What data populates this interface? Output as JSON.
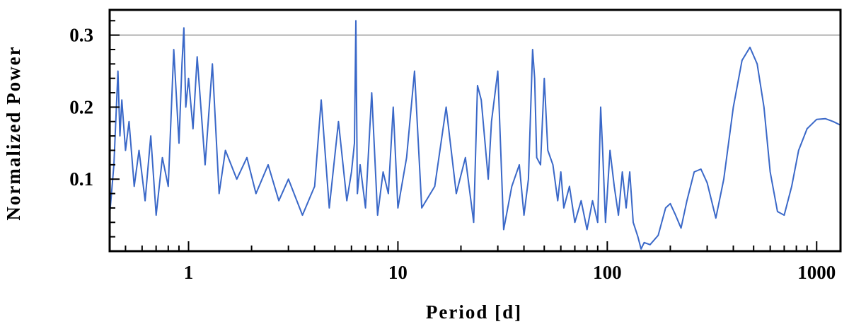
{
  "chart_data": {
    "type": "line",
    "title": "",
    "xlabel": "Period [d]",
    "ylabel": "Normalized Power",
    "xscale": "log",
    "xlim": [
      0.42,
      1300
    ],
    "ylim": [
      0,
      0.335
    ],
    "x_ticks": [
      {
        "value": 1,
        "label": "1"
      },
      {
        "value": 10,
        "label": "10"
      },
      {
        "value": 100,
        "label": "100"
      },
      {
        "value": 1000,
        "label": "1000"
      }
    ],
    "y_ticks": [
      {
        "value": 0.1,
        "label": "0.1"
      },
      {
        "value": 0.2,
        "label": "0.2"
      },
      {
        "value": 0.3,
        "label": "0.3"
      }
    ],
    "threshold": {
      "value": 0.3,
      "color": "#b0b0b0"
    },
    "line_color": "#3a68c8",
    "series": [
      {
        "name": "",
        "x": [
          0.42,
          0.44,
          0.46,
          0.47,
          0.48,
          0.5,
          0.52,
          0.55,
          0.58,
          0.62,
          0.66,
          0.7,
          0.75,
          0.8,
          0.85,
          0.9,
          0.93,
          0.95,
          0.97,
          1.0,
          1.05,
          1.1,
          1.2,
          1.3,
          1.4,
          1.5,
          1.7,
          1.9,
          2.1,
          2.4,
          2.7,
          3.0,
          3.5,
          4.0,
          4.3,
          4.7,
          5.2,
          5.7,
          6.0,
          6.2,
          6.3,
          6.4,
          6.6,
          7.0,
          7.5,
          8.0,
          8.5,
          9.0,
          9.5,
          10.0,
          11.0,
          12.0,
          13.0,
          15.0,
          17.0,
          19.0,
          21.0,
          23.0,
          24.0,
          25.0,
          27.0,
          28.0,
          30.0,
          32.0,
          35.0,
          38.0,
          40.0,
          42.0,
          44.0,
          45.0,
          46.0,
          48.0,
          50.0,
          52.0,
          55.0,
          58.0,
          60.0,
          62.0,
          66.0,
          70.0,
          75.0,
          80.0,
          85.0,
          90.0,
          93.0,
          95.0,
          98.0,
          103.0,
          108.0,
          113.0,
          118.0,
          123.0,
          128.0,
          133.0,
          140.0,
          145.0,
          150.0,
          160.0,
          175.0,
          190.0,
          200.0,
          212.0,
          225.0,
          240.0,
          260.0,
          280.0,
          300.0,
          330.0,
          360.0,
          400.0,
          440.0,
          480.0,
          520.0,
          560.0,
          600.0,
          650.0,
          700.0,
          760.0,
          820.0,
          900.0,
          1000.0,
          1100.0,
          1200.0,
          1300.0
        ],
        "y": [
          0.05,
          0.12,
          0.25,
          0.16,
          0.21,
          0.14,
          0.18,
          0.09,
          0.14,
          0.07,
          0.16,
          0.05,
          0.13,
          0.09,
          0.28,
          0.15,
          0.26,
          0.31,
          0.2,
          0.24,
          0.17,
          0.27,
          0.12,
          0.26,
          0.08,
          0.14,
          0.1,
          0.13,
          0.08,
          0.12,
          0.07,
          0.1,
          0.05,
          0.09,
          0.21,
          0.06,
          0.18,
          0.07,
          0.11,
          0.15,
          0.32,
          0.08,
          0.12,
          0.06,
          0.22,
          0.05,
          0.11,
          0.08,
          0.2,
          0.06,
          0.13,
          0.25,
          0.06,
          0.09,
          0.2,
          0.08,
          0.13,
          0.04,
          0.23,
          0.21,
          0.1,
          0.18,
          0.25,
          0.03,
          0.09,
          0.12,
          0.05,
          0.1,
          0.28,
          0.24,
          0.13,
          0.12,
          0.24,
          0.14,
          0.12,
          0.07,
          0.11,
          0.06,
          0.09,
          0.04,
          0.07,
          0.03,
          0.07,
          0.04,
          0.2,
          0.14,
          0.04,
          0.14,
          0.09,
          0.05,
          0.11,
          0.06,
          0.11,
          0.04,
          0.02,
          0.003,
          0.012,
          0.009,
          0.022,
          0.06,
          0.066,
          0.05,
          0.032,
          0.07,
          0.11,
          0.114,
          0.095,
          0.046,
          0.1,
          0.2,
          0.265,
          0.283,
          0.26,
          0.2,
          0.11,
          0.055,
          0.05,
          0.09,
          0.14,
          0.17,
          0.183,
          0.184,
          0.18,
          0.175
        ]
      }
    ]
  }
}
